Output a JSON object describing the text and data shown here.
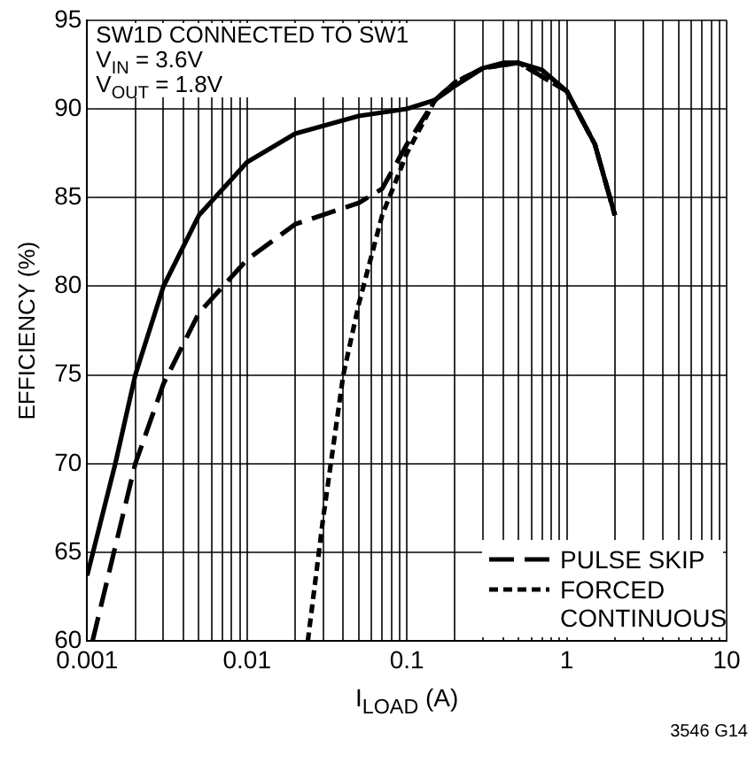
{
  "chart_data": {
    "type": "line",
    "xlabel": "I$_{LOAD}$ (A)",
    "ylabel": "EFFICIENCY (%)",
    "annotations": [
      "SW1D CONNECTED TO SW1",
      "V$_{IN}$ = 3.6V",
      "V$_{OUT}$ = 1.8V",
      "3546 G14"
    ],
    "log": "x",
    "grid": true,
    "legend": "bottom right",
    "marker": "none",
    "xlim": [
      0.001,
      10
    ],
    "ylim": [
      60,
      95
    ],
    "xticks": [
      0.001,
      {
        "value": 0.002,
        "label": null
      },
      {
        "value": 0.003,
        "label": null
      },
      {
        "value": 0.004,
        "label": null
      },
      {
        "value": 0.005,
        "label": null
      },
      {
        "value": 0.006,
        "label": null
      },
      {
        "value": 0.007,
        "label": null
      },
      {
        "value": 0.008,
        "label": null
      },
      {
        "value": 0.009,
        "label": null
      },
      0.01,
      {
        "value": 0.02,
        "label": null
      },
      {
        "value": 0.03,
        "label": null
      },
      {
        "value": 0.04,
        "label": null
      },
      {
        "value": 0.05,
        "label": null
      },
      {
        "value": 0.06,
        "label": null
      },
      {
        "value": 0.07,
        "label": null
      },
      {
        "value": 0.08,
        "label": null
      },
      {
        "value": 0.09,
        "label": null
      },
      0.1,
      {
        "value": 0.2,
        "label": null
      },
      {
        "value": 0.3,
        "label": null
      },
      {
        "value": 0.4,
        "label": null
      },
      {
        "value": 0.5,
        "label": null
      },
      {
        "value": 0.6,
        "label": null
      },
      {
        "value": 0.7,
        "label": null
      },
      {
        "value": 0.8,
        "label": null
      },
      {
        "value": 0.9,
        "label": null
      },
      1,
      {
        "value": 2,
        "label": null
      },
      {
        "value": 3,
        "label": null
      },
      {
        "value": 4,
        "label": null
      },
      {
        "value": 5,
        "label": null
      },
      {
        "value": 6,
        "label": null
      },
      {
        "value": 7,
        "label": null
      },
      {
        "value": 8,
        "label": null
      },
      {
        "value": 9,
        "label": null
      },
      10
    ],
    "yticks": [
      60,
      65,
      70,
      75,
      80,
      85,
      90,
      95
    ],
    "series": [
      {
        "color": "#000000",
        "line_style": "solid",
        "x": [
          0.001,
          0.0015,
          0.002,
          0.003,
          0.005,
          0.01,
          0.02,
          0.05,
          0.1,
          0.15,
          0.2,
          0.3,
          0.4,
          0.5,
          0.7,
          1,
          1.5,
          2
        ],
        "values": [
          63.7,
          70,
          75,
          80,
          84,
          87,
          88.6,
          89.6,
          90,
          90.5,
          91.3,
          92.3,
          92.6,
          92.6,
          92.2,
          91,
          88,
          84
        ]
      },
      {
        "name": "PULSE SKIP",
        "color": "#000000",
        "line_style": "dashed",
        "x": [
          0.00108,
          0.002,
          0.003,
          0.005,
          0.01,
          0.02,
          0.05,
          0.07,
          0.1,
          0.15,
          0.2,
          0.3,
          0.5,
          1,
          1.5,
          2
        ],
        "values": [
          60,
          70,
          74.5,
          78.5,
          81.5,
          83.5,
          84.7,
          85.5,
          88,
          90.5,
          91.5,
          92.3,
          92.6,
          91,
          88,
          84
        ]
      },
      {
        "name": "FORCED CONTINUOUS",
        "color": "#000000",
        "line_style": "dotted",
        "x": [
          0.024,
          0.03,
          0.04,
          0.05,
          0.07,
          0.1,
          0.15,
          0.2,
          0.3,
          0.5,
          1,
          1.5,
          2
        ],
        "values": [
          60,
          67,
          75,
          79,
          84,
          87.5,
          90.5,
          91.5,
          92.3,
          92.6,
          91,
          88,
          84
        ]
      }
    ]
  }
}
